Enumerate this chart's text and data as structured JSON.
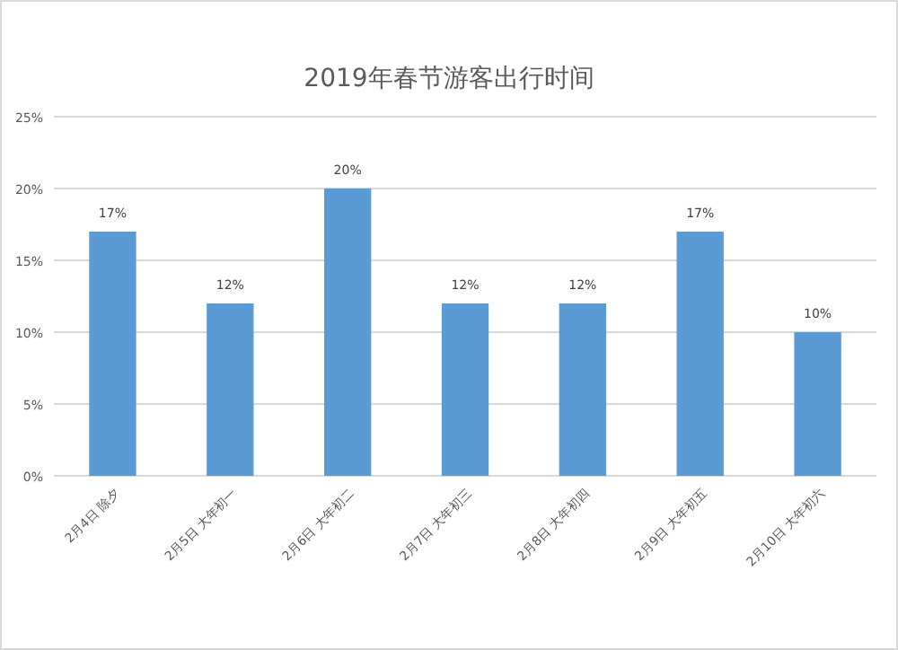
{
  "chart_data": {
    "type": "bar",
    "title": "2019年春节游客出行时间",
    "categories": [
      "2月4日 除夕",
      "2月5日 大年初一",
      "2月6日 大年初二",
      "2月7日 大年初三",
      "2月8日 大年初四",
      "2月9日 大年初五",
      "2月10日 大年初六"
    ],
    "values": [
      17,
      12,
      20,
      12,
      12,
      17,
      10
    ],
    "value_labels": [
      "17%",
      "12%",
      "20%",
      "12%",
      "12%",
      "17%",
      "10%"
    ],
    "color": "#5b9bd5",
    "ylim": [
      0,
      25
    ],
    "yticks": [
      {
        "value": 0,
        "label": "0%"
      },
      {
        "value": 5,
        "label": "5%"
      },
      {
        "value": 10,
        "label": "10%"
      },
      {
        "value": 15,
        "label": "15%"
      },
      {
        "value": 20,
        "label": "20%"
      },
      {
        "value": 25,
        "label": "25%"
      }
    ],
    "grid": "y"
  }
}
